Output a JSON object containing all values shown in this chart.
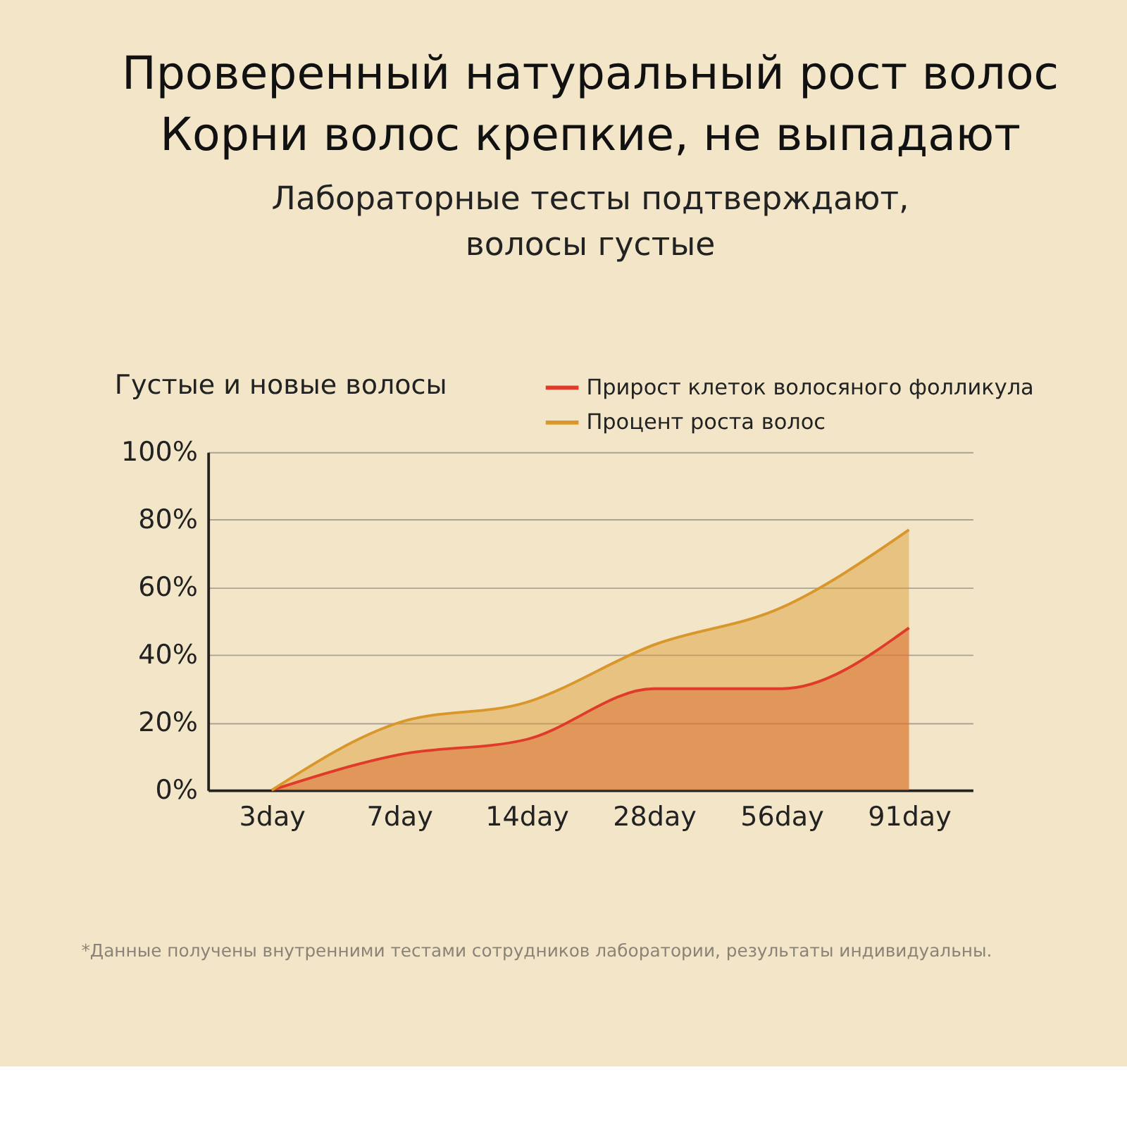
{
  "chart_data": {
    "type": "area",
    "title": [
      "Проверенный натуральный рост волос",
      "Корни волос крепкие, не выпадают"
    ],
    "subtitle": [
      "Лабораторные тесты подтверждают,",
      "волосы густые"
    ],
    "ylabel": "Густые и новые волосы",
    "categories": [
      "3day",
      "7day",
      "14day",
      "28day",
      "56day",
      "91day"
    ],
    "series": [
      {
        "name": "Прирост клеток волосяного фолликула",
        "color": "#e03a2a",
        "values": [
          0,
          10.5,
          15,
          30,
          30,
          48
        ]
      },
      {
        "name": "Процент роста волос",
        "color": "#d9962a",
        "values": [
          0,
          20,
          26,
          43,
          54,
          77
        ]
      }
    ],
    "ylim": [
      0,
      100
    ],
    "yticks": [
      {
        "value": 0,
        "label": "0%"
      },
      {
        "value": 20,
        "label": "20%"
      },
      {
        "value": 40,
        "label": "40%"
      },
      {
        "value": 60,
        "label": "60%"
      },
      {
        "value": 80,
        "label": "80%"
      },
      {
        "value": 100,
        "label": "100%"
      }
    ],
    "grid": "y",
    "legend": "top right",
    "annotations": [
      "*Данные получены внутренними тестами сотрудников лаборатории, результаты индивидуальны."
    ]
  }
}
